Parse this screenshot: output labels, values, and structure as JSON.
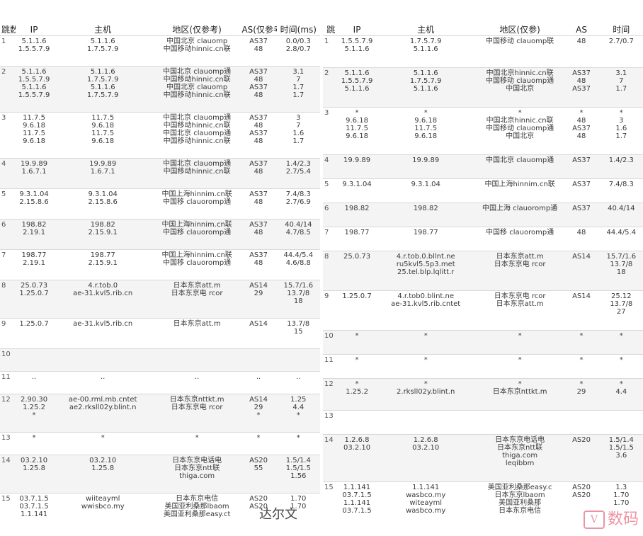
{
  "headers": {
    "left": [
      "跳数",
      "IP",
      "主机",
      "地区(仅参考)",
      "AS(仅参考)",
      "时间(ms)"
    ],
    "right": [
      "跳",
      "IP",
      "主机",
      "地区(仅参)",
      "AS",
      "时间"
    ]
  },
  "left_rows": [
    {
      "n": "1",
      "ip": "5.1.1.6\n1.5.5.7.9",
      "host": "5.1.1.6\n1.7.5.7.9",
      "loc": "中国北京 clauomp\n中国移动hinnic.cn联",
      "as": "AS37\n48",
      "time": "0.0/0.3\n2.8/0.7",
      "shade": false
    },
    {
      "n": "2",
      "ip": "5.1.1.6\n1.5.5.7.9\n5.1.1.6\n1.5.5.7.9",
      "host": "5.1.1.6\n1.7.5.7.9\n5.1.1.6\n1.7.5.7.9",
      "loc": "中国北京 clauomp通\n中国移动hinnic.cn联\n中国北京 clauomp\n中国移动hinnic.cn联",
      "as": "AS37\n48\nAS37\n48",
      "time": "3.1\n7\n1.7\n1.7",
      "shade": true
    },
    {
      "n": "3",
      "ip": "11.7.5\n9.6.18\n11.7.5\n9.6.18",
      "host": "11.7.5\n9.6.18\n11.7.5\n9.6.18",
      "loc": "中国北京 clauomp通\n中国移动hinnic.cn联\n中国北京 clauomp通\n中国移动hinnic.cn联",
      "as": "AS37\n48\nAS37\n48",
      "time": "3\n7\n1.6\n1.7",
      "shade": false
    },
    {
      "n": "4",
      "ip": "19.9.89\n1.6.7.1",
      "host": "19.9.89\n1.6.7.1",
      "loc": "中国北京 clauomp通\n中国移动hinnic.cn联",
      "as": "AS37\n48",
      "time": "1.4/2.3\n2.7/5.4",
      "shade": true
    },
    {
      "n": "5",
      "ip": "9.3.1.04\n2.15.8.6",
      "host": "9.3.1.04\n2.15.8.6",
      "loc": "中国上海hinnim.cn联\n中国移 clauoromp通",
      "as": "AS37\n48",
      "time": "7.4/8.3\n2.7/6.9",
      "shade": false
    },
    {
      "n": "6",
      "ip": "198.82\n2.19.1",
      "host": "198.82\n2.15.9.1",
      "loc": "中国上海hinnim.cn联\n中国移 clauoromp通",
      "as": "AS37\n48",
      "time": "40.4/14\n4.7/8.5",
      "shade": true
    },
    {
      "n": "7",
      "ip": "198.77\n2.19.1",
      "host": "198.77\n2.15.9.1",
      "loc": "中国上海hinnim.cn联\n中国移 clauoromp通",
      "as": "AS37\n48",
      "time": "44.4/5.4\n4.6/8.8",
      "shade": false
    },
    {
      "n": "8",
      "ip": "25.0.73\n1.25.0.7",
      "host": "4.r.tob.0\nae-31.kvl5.rib.cn",
      "loc": "日本东京att.m\n日本东京电 rcor",
      "as": "AS14\n29",
      "time": "15.7/1.6\n13.7/8\n18",
      "shade": true
    },
    {
      "n": "9",
      "ip": "1.25.0.7",
      "host": "ae-31.kvl5.rib.cn",
      "loc": "日本东京att.m",
      "as": "AS14",
      "time": "13.7/8\n15",
      "shade": false
    },
    {
      "n": "10",
      "ip": "",
      "host": "",
      "loc": "",
      "as": "",
      "time": "",
      "shade": true
    },
    {
      "n": "11",
      "ip": "..",
      "host": "..",
      "loc": "..",
      "as": "..",
      "time": "..",
      "shade": false
    },
    {
      "n": "12",
      "ip": "2.90.30\n1.25.2\n*",
      "host": "ae-00.rml.mb.cntet\nae2.rksll02y.blint.n",
      "loc": "日本东京nttkt.m\n日本东京电 rcor",
      "as": "AS14\n29\n*",
      "time": "1.25\n4.4\n*",
      "shade": true
    },
    {
      "n": "13",
      "ip": "*",
      "host": "*",
      "loc": "*",
      "as": "*",
      "time": "*",
      "shade": false
    },
    {
      "n": "14",
      "ip": "03.2.10\n1.25.8",
      "host": "03.2.10\n1.25.8",
      "loc": "日本东京电话电\n日本东京ntt联\nthiga.com",
      "as": "AS20\n55",
      "time": "1.5/1.4\n1.5/1.5\n1.56",
      "shade": true
    },
    {
      "n": "15",
      "ip": "03.7.1.5\n03.7.1.5\n1.1.141",
      "host": "wiiteayml\nwwisbco.my",
      "loc": "日本东京电信\n美国亚利桑那lbaom\n美国亚利桑那easy.ct",
      "as": "AS20\nAS20",
      "time": "1.70\n1.70",
      "shade": false
    }
  ],
  "right_rows": [
    {
      "n": "1",
      "ip": "1.5.5.7.9\n5.1.1.6",
      "host": "1.7.5.7.9\n5.1.1.6",
      "loc": "中国移动 clauomp联",
      "as": "48",
      "time": "2.7/0.7",
      "shade": false
    },
    {
      "n": "2",
      "ip": "5.1.1.6\n1.5.5.7.9\n5.1.1.6",
      "host": "5.1.1.6\n1.7.5.7.9\n5.1.1.6",
      "loc": "中国北京hinnic.cn联\n中国移动 clauomp通\n中国北京",
      "as": "AS37\n48\nAS37",
      "time": "3.1\n7\n1.7",
      "shade": true
    },
    {
      "n": "3",
      "ip": "*\n9.6.18\n11.7.5\n9.6.18",
      "host": "*\n9.6.18\n11.7.5\n9.6.18",
      "loc": "*\n中国北京hinnic.cn联\n中国移动 clauomp通\n中国北京",
      "as": "*\n48\nAS37\n48",
      "time": "*\n3\n1.6\n1.7",
      "shade": false
    },
    {
      "n": "4",
      "ip": "19.9.89",
      "host": "19.9.89",
      "loc": "中国北京 clauomp通",
      "as": "AS37",
      "time": "1.4/2.3",
      "shade": true
    },
    {
      "n": "5",
      "ip": "9.3.1.04",
      "host": "9.3.1.04",
      "loc": "中国上海hinnim.cn联",
      "as": "AS37",
      "time": "7.4/8.3",
      "shade": false
    },
    {
      "n": "6",
      "ip": "198.82",
      "host": "198.82",
      "loc": "中国上海 clauoromp通",
      "as": "AS37",
      "time": "40.4/14",
      "shade": true
    },
    {
      "n": "7",
      "ip": "198.77",
      "host": "198.77",
      "loc": "中国移 clauoromp通",
      "as": "48",
      "time": "44.4/5.4",
      "shade": false
    },
    {
      "n": "8",
      "ip": "25.0.73",
      "host": "4.r.tob.0.bllnt.ne\nru5kvl5.5p3.met\n25.tel.blp.lqlitt.r",
      "loc": "日本东京att.m\n日本东京电 rcor",
      "as": "AS14",
      "time": "15.7/1.6\n13.7/8\n18",
      "shade": true
    },
    {
      "n": "9",
      "ip": "1.25.0.7",
      "host": "4.r.tob0.blint.ne\nae-31.kvl5.rib.cntet",
      "loc": "日本东京电 rcor\n日本东京att.m",
      "as": "AS14",
      "time": "25.12\n13.7/8\n27",
      "shade": false
    },
    {
      "n": "10",
      "ip": "*",
      "host": "*",
      "loc": "*",
      "as": "*",
      "time": "*",
      "shade": true
    },
    {
      "n": "11",
      "ip": "*",
      "host": "*",
      "loc": "*",
      "as": "*",
      "time": "*",
      "shade": false
    },
    {
      "n": "12",
      "ip": "*\n1.25.2",
      "host": "*\n2.rksll02y.blint.n",
      "loc": "*\n日本东京nttkt.m",
      "as": "*\n29",
      "time": "*\n4.4",
      "shade": true
    },
    {
      "n": "13",
      "ip": "",
      "host": "",
      "loc": "",
      "as": "",
      "time": "",
      "shade": false
    },
    {
      "n": "14",
      "ip": "1.2.6.8\n03.2.10",
      "host": "1.2.6.8\n03.2.10",
      "loc": "日本东京电话电\n日本东京ntt联\nthiga.com\nleqibbm",
      "as": "AS20",
      "time": "1.5/1.4\n1.5/1.5\n3.6",
      "shade": true
    },
    {
      "n": "15",
      "ip": "1.1.141\n03.7.1.5\n1.1.141\n03.7.1.5",
      "host": "1.1.141\nwasbco.my\nwiteayml\nwasbco.my",
      "loc": "美国亚利桑那easy.c\n日本东京lbaom\n美国亚利桑那\n日本东京电信",
      "as": "AS20\nAS20",
      "time": "1.3\n1.70\n1.70",
      "shade": false
    }
  ],
  "watermark": {
    "box": "V",
    "text": "数码"
  },
  "bottom_mark": "达尔文",
  "icons": {
    "watermark": "logo-icon"
  }
}
